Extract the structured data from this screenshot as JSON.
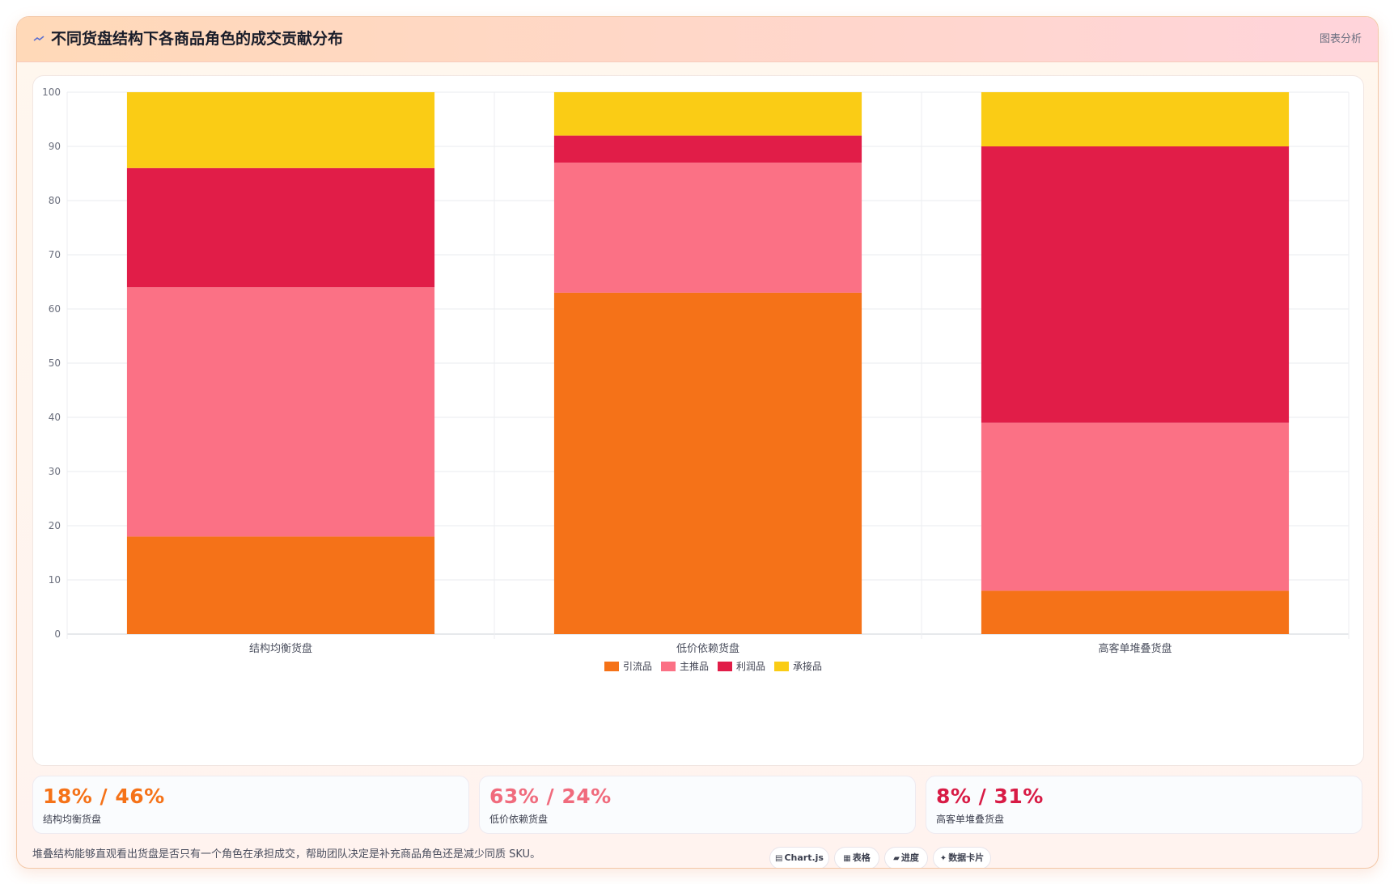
{
  "header": {
    "title": "不同货盘结构下各商品角色的成交贡献分布",
    "title_icon": "trend-icon",
    "tag": "图表分析"
  },
  "chart_data": {
    "type": "bar",
    "stacked": true,
    "categories": [
      "结构均衡货盘",
      "低价依赖货盘",
      "高客单堆叠货盘"
    ],
    "series": [
      {
        "name": "引流品",
        "color": "#f57218",
        "values": [
          18,
          63,
          8
        ]
      },
      {
        "name": "主推品",
        "color": "#fb7185",
        "values": [
          46,
          24,
          31
        ]
      },
      {
        "name": "利润品",
        "color": "#e11d48",
        "values": [
          22,
          5,
          51
        ]
      },
      {
        "name": "承接品",
        "color": "#facc15",
        "values": [
          14,
          8,
          10
        ]
      }
    ],
    "ylim": [
      0,
      100
    ],
    "yticks": [
      0,
      10,
      20,
      30,
      40,
      50,
      60,
      70,
      80,
      90,
      100
    ],
    "grid": true,
    "legend": "bottom-center",
    "title": "",
    "xlabel": "",
    "ylabel": ""
  },
  "stats": [
    {
      "value": "18% / 46%",
      "label": "结构均衡货盘",
      "color": "#f57218"
    },
    {
      "value": "63% / 24%",
      "label": "低价依赖货盘",
      "color": "#f06b7d"
    },
    {
      "value": "8% / 31%",
      "label": "高客单堆叠货盘",
      "color": "#d81b45"
    }
  ],
  "footnote": "堆叠结构能够直观看出货盘是否只有一个角色在承担成交，帮助团队决定是补充商品角色还是减少同质 SKU。",
  "chips": [
    {
      "label": "Chart.js",
      "icon": "chart-icon"
    },
    {
      "label": "表格",
      "icon": "table-icon"
    },
    {
      "label": "进度",
      "icon": "progress-icon"
    },
    {
      "label": "数据卡片",
      "icon": "sparkle-icon"
    }
  ]
}
